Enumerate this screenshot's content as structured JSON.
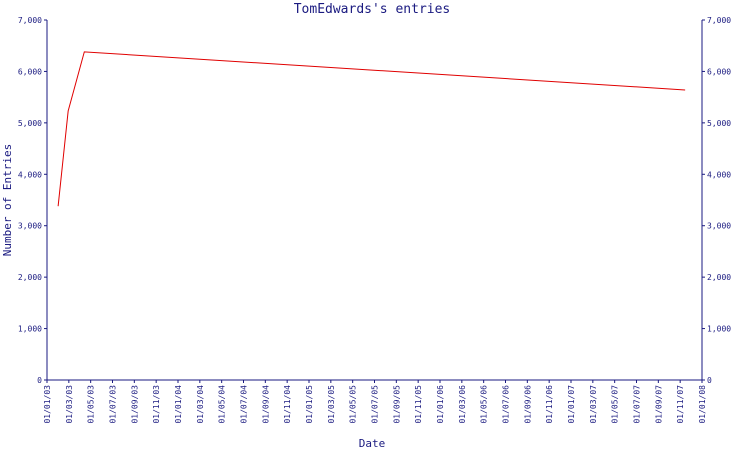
{
  "chart_data": {
    "type": "line",
    "title": "TomEdwards's entries",
    "xlabel": "Date",
    "ylabel": "Number of Entries",
    "ylim": [
      0,
      7000
    ],
    "y_ticks": [
      "0",
      "1,000",
      "2,000",
      "3,000",
      "4,000",
      "5,000",
      "6,000",
      "7,000"
    ],
    "y_tick_values": [
      0,
      1000,
      2000,
      3000,
      4000,
      5000,
      6000,
      7000
    ],
    "x_ticks": [
      "01/01/03",
      "01/03/03",
      "01/05/03",
      "01/07/03",
      "01/09/03",
      "01/11/03",
      "01/01/04",
      "01/03/04",
      "01/05/04",
      "01/07/04",
      "01/09/04",
      "01/11/04",
      "01/01/05",
      "01/03/05",
      "01/05/05",
      "01/07/05",
      "01/09/05",
      "01/11/05",
      "01/01/06",
      "01/03/06",
      "01/05/06",
      "01/07/06",
      "01/09/06",
      "01/11/06",
      "01/01/07",
      "01/03/07",
      "01/05/07",
      "01/07/07",
      "01/09/07",
      "01/11/07",
      "01/01/08"
    ],
    "grid": false,
    "legend": "none",
    "y_axis_mirrored": true,
    "series": [
      {
        "color": "#e00000",
        "x": [
          "2003-02-01",
          "2003-03-01",
          "2003-04-15",
          "2007-11-15"
        ],
        "y": [
          3380,
          5230,
          6380,
          5640
        ]
      }
    ]
  }
}
